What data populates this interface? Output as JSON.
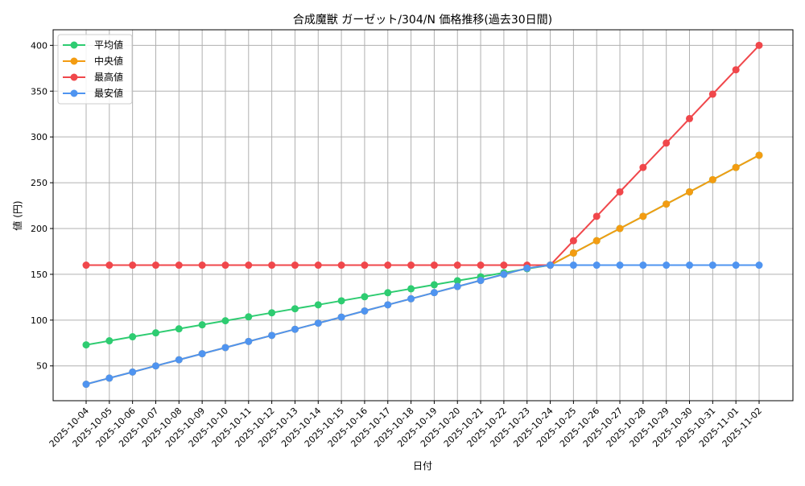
{
  "chart_data": {
    "type": "line",
    "title": "合成魔獣 ガーゼット/304/N 価格推移(過去30日間)",
    "xlabel": "日付",
    "ylabel": "値 (円)",
    "ylim": [
      12,
      417
    ],
    "yticks": [
      50,
      100,
      150,
      200,
      250,
      300,
      350,
      400
    ],
    "grid": true,
    "legend_position": "top-left",
    "x": [
      "2025-10-04",
      "2025-10-05",
      "2025-10-06",
      "2025-10-07",
      "2025-10-08",
      "2025-10-09",
      "2025-10-10",
      "2025-10-11",
      "2025-10-12",
      "2025-10-13",
      "2025-10-14",
      "2025-10-15",
      "2025-10-16",
      "2025-10-17",
      "2025-10-18",
      "2025-10-19",
      "2025-10-20",
      "2025-10-21",
      "2025-10-22",
      "2025-10-23",
      "2025-10-24",
      "2025-10-25",
      "2025-10-26",
      "2025-10-27",
      "2025-10-28",
      "2025-10-29",
      "2025-10-30",
      "2025-10-31",
      "2025-11-01",
      "2025-11-02"
    ],
    "series": [
      {
        "name": "平均値",
        "color": "#2ecc71",
        "values": [
          73,
          77.4,
          81.8,
          86.1,
          90.5,
          94.9,
          99.3,
          103.6,
          108,
          112.4,
          116.7,
          121.1,
          125.5,
          129.9,
          134.2,
          138.6,
          143,
          147.3,
          151.7,
          156.1,
          160,
          173.3,
          186.7,
          200,
          213.3,
          226.7,
          240,
          253.3,
          266.7,
          280
        ]
      },
      {
        "name": "中央値",
        "color": "#f39c12",
        "values": [
          30,
          36.7,
          43.3,
          50,
          56.7,
          63.3,
          70,
          76.7,
          83.3,
          90,
          96.7,
          103.3,
          110,
          116.7,
          123.3,
          130,
          136.7,
          143.3,
          150,
          156.7,
          160,
          173.3,
          186.7,
          200,
          213.3,
          226.7,
          240,
          253.3,
          266.7,
          280
        ]
      },
      {
        "name": "最高値",
        "color": "#f0474b",
        "values": [
          160,
          160,
          160,
          160,
          160,
          160,
          160,
          160,
          160,
          160,
          160,
          160,
          160,
          160,
          160,
          160,
          160,
          160,
          160,
          160,
          160,
          186.7,
          213.3,
          240,
          266.7,
          293.3,
          320,
          346.7,
          373.3,
          400
        ]
      },
      {
        "name": "最安値",
        "color": "#4f94f0",
        "values": [
          30,
          36.7,
          43.3,
          50,
          56.7,
          63.3,
          70,
          76.7,
          83.3,
          90,
          96.7,
          103.3,
          110,
          116.7,
          123.3,
          130,
          136.7,
          143.3,
          150,
          156.7,
          160,
          160,
          160,
          160,
          160,
          160,
          160,
          160,
          160,
          160
        ]
      }
    ]
  }
}
